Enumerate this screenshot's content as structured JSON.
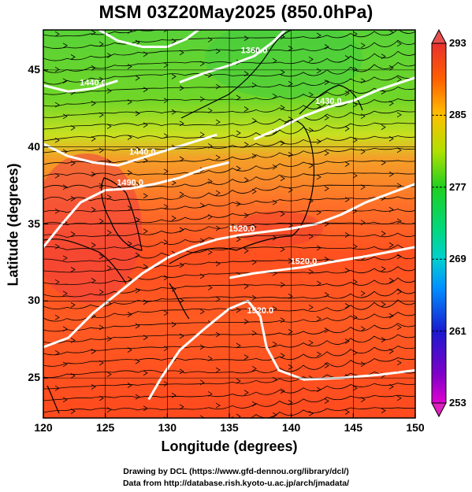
{
  "title": "MSM 03Z20May2025 (850.0hPa)",
  "x_axis": {
    "label": "Longitude (degrees)",
    "range": [
      120,
      150
    ],
    "ticks": [
      120,
      125,
      130,
      135,
      140,
      145,
      150
    ]
  },
  "y_axis": {
    "label": "Latitude  (degrees)",
    "range": [
      22.4,
      47.6
    ],
    "ticks": [
      25,
      30,
      35,
      40,
      45
    ]
  },
  "colorbar": {
    "range": [
      253,
      293
    ],
    "ticks": [
      253,
      261,
      269,
      277,
      285,
      293
    ],
    "colors": [
      "#e000d0",
      "#7000c0",
      "#1a1ad0",
      "#0080ff",
      "#00d0d0",
      "#00d880",
      "#10d020",
      "#80e000",
      "#d8e800",
      "#ffc000",
      "#ff8000",
      "#ff3000",
      "#e83030"
    ]
  },
  "contours": [
    {
      "label": "1520.0",
      "points": [
        [
          120,
          27.0
        ],
        [
          122,
          27.6
        ],
        [
          124,
          29.2
        ],
        [
          126,
          30.5
        ],
        [
          128,
          31.8
        ],
        [
          130,
          32.8
        ],
        [
          132,
          33.5
        ],
        [
          134,
          34.0
        ],
        [
          136,
          34.3
        ],
        [
          138,
          34.5
        ],
        [
          140,
          34.7
        ],
        [
          142,
          35.0
        ],
        [
          144,
          35.6
        ],
        [
          146,
          36.4
        ],
        [
          148,
          37.0
        ],
        [
          150,
          37.6
        ]
      ]
    },
    {
      "label": "1490.0",
      "points": [
        [
          120,
          33.5
        ],
        [
          121.5,
          35.0
        ],
        [
          123,
          36.4
        ],
        [
          125,
          37.2
        ],
        [
          127,
          37.3
        ],
        [
          129,
          37.6
        ],
        [
          131,
          38.0
        ],
        [
          133,
          38.6
        ],
        [
          135,
          39.0
        ]
      ]
    },
    {
      "label": "1440.0",
      "points": [
        [
          120,
          40.2
        ],
        [
          122,
          39.4
        ],
        [
          124,
          39.0
        ],
        [
          126,
          38.8
        ],
        [
          128,
          39.3
        ],
        [
          130,
          39.8
        ],
        [
          132,
          40.3
        ],
        [
          134,
          40.8
        ]
      ]
    },
    {
      "label": "1430.0",
      "points": [
        [
          137,
          40.5
        ],
        [
          139,
          41.2
        ],
        [
          141,
          42.0
        ],
        [
          143,
          42.6
        ],
        [
          145,
          43.0
        ],
        [
          147,
          43.7
        ],
        [
          150,
          44.5
        ]
      ]
    },
    {
      "label": "1440.0",
      "points": [
        [
          120,
          44.0
        ],
        [
          122,
          43.6
        ],
        [
          124,
          43.8
        ],
        [
          126,
          44.3
        ]
      ]
    },
    {
      "label": "1360.0",
      "points": [
        [
          131,
          44.2
        ],
        [
          133,
          44.8
        ],
        [
          135,
          45.3
        ],
        [
          137,
          45.9
        ],
        [
          138.5,
          46.8
        ],
        [
          139.5,
          47.6
        ]
      ]
    },
    {
      "label": "",
      "points": [
        [
          124.5,
          47.6
        ],
        [
          126,
          46.9
        ],
        [
          128,
          46.5
        ],
        [
          130,
          46.5
        ],
        [
          131.5,
          47.0
        ],
        [
          132.5,
          47.6
        ]
      ]
    },
    {
      "label": "1520.0",
      "points": [
        [
          128.5,
          23.6
        ],
        [
          129.5,
          25.0
        ],
        [
          131,
          26.8
        ],
        [
          133,
          28.2
        ],
        [
          135,
          29.5
        ],
        [
          136.5,
          30.0
        ],
        [
          137.5,
          29.0
        ],
        [
          138,
          27.0
        ],
        [
          139,
          25.5
        ],
        [
          141,
          24.9
        ],
        [
          144,
          25.0
        ],
        [
          147,
          25.2
        ],
        [
          150,
          25.5
        ]
      ]
    },
    {
      "label": "1520.0",
      "points": [
        [
          135,
          31.5
        ],
        [
          137,
          31.8
        ],
        [
          139,
          32.0
        ],
        [
          141,
          32.2
        ],
        [
          143,
          32.5
        ],
        [
          146,
          32.9
        ],
        [
          150,
          33.5
        ]
      ]
    }
  ],
  "credits": {
    "line1": "Drawing by DCL (https://www.gfd-dennou.org/library/dcl/)",
    "line2": "Data from http://database.rish.kyoto-u.ac.jp/arch/jmadata/"
  }
}
